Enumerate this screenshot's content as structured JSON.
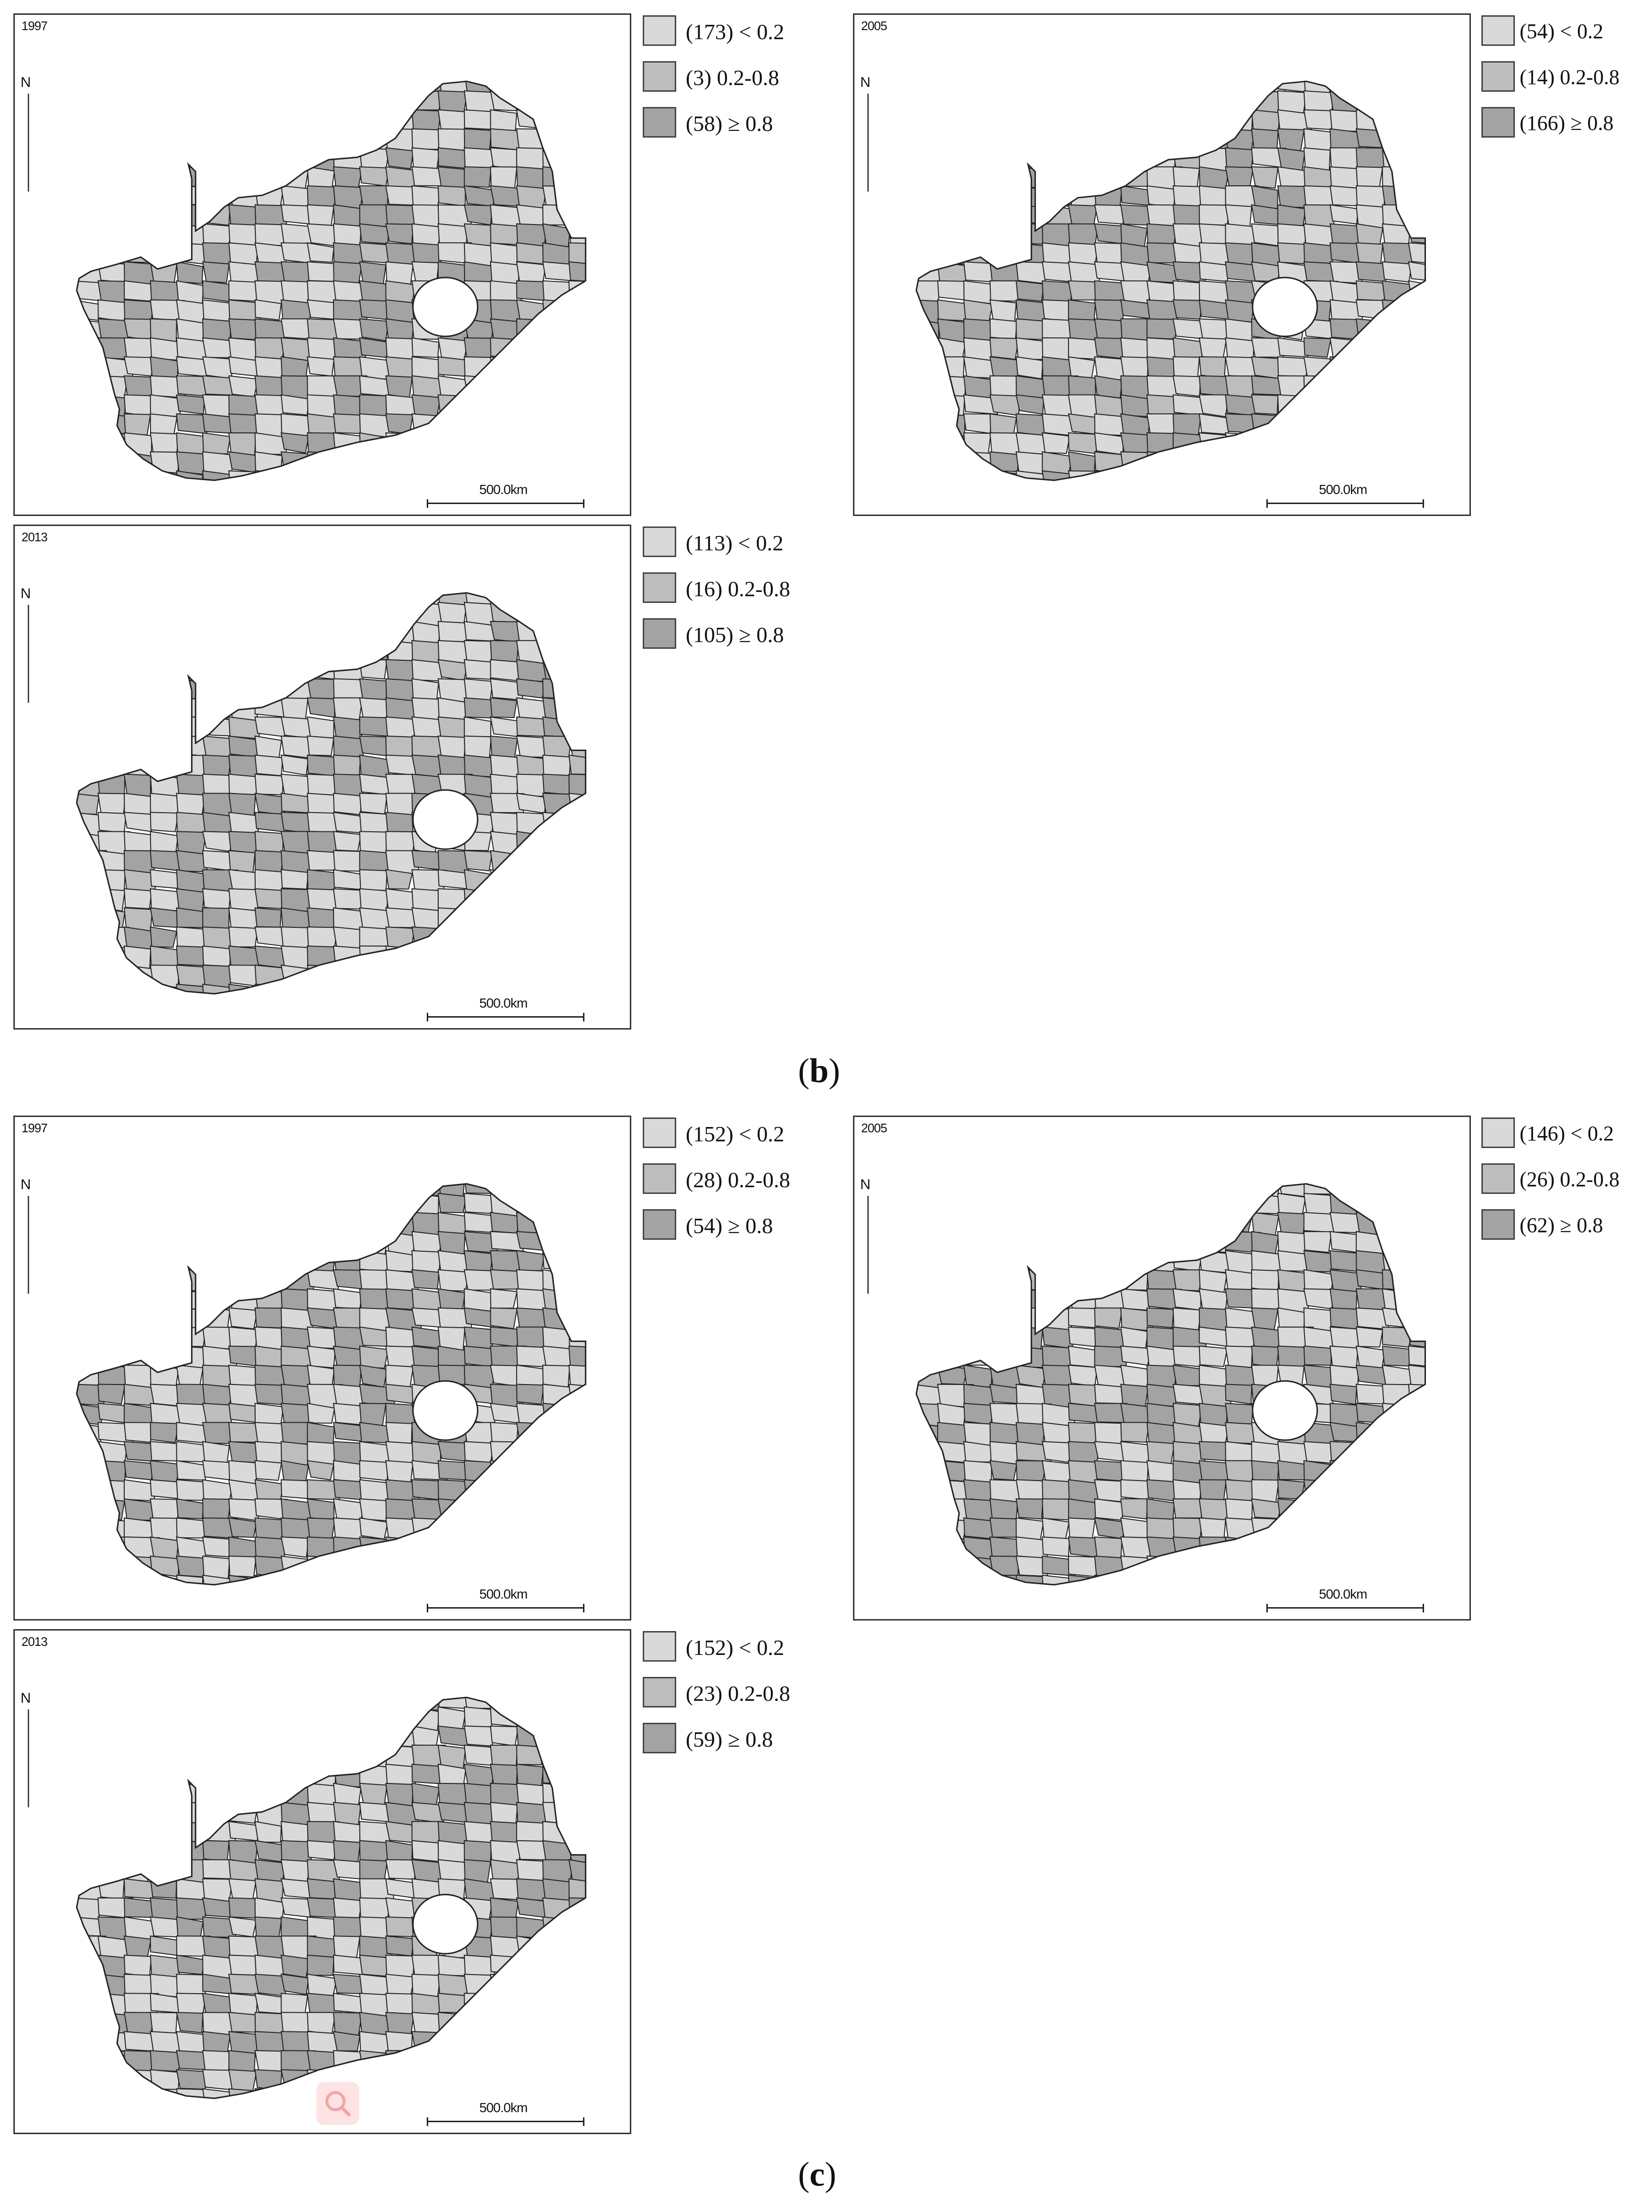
{
  "colors": {
    "light": "#d9d9d9",
    "medium": "#bdbdbd",
    "dark": "#a3a3a3",
    "border": "#222222"
  },
  "icons": {
    "north": "north-arrow-icon",
    "search": "search-icon"
  },
  "panels": [
    {
      "label": "b",
      "maps": [
        {
          "year": "1997",
          "scale": "500.0km",
          "north": "N",
          "legend": [
            {
              "text": "(173) < 0.2",
              "fill": "light"
            },
            {
              "text": "(3) 0.2-0.8",
              "fill": "medium"
            },
            {
              "text": "(58) ≥ 0.8",
              "fill": "dark"
            }
          ]
        },
        {
          "year": "2005",
          "scale": "500.0km",
          "north": "N",
          "legend": [
            {
              "text": "(54) < 0.2",
              "fill": "light"
            },
            {
              "text": "(14) 0.2-0.8",
              "fill": "medium"
            },
            {
              "text": "(166) ≥ 0.8",
              "fill": "dark"
            }
          ]
        },
        {
          "year": "2013",
          "scale": "500.0km",
          "north": "N",
          "legend": [
            {
              "text": "(113) < 0.2",
              "fill": "light"
            },
            {
              "text": "(16) 0.2-0.8",
              "fill": "medium"
            },
            {
              "text": "(105) ≥ 0.8",
              "fill": "dark"
            }
          ]
        }
      ]
    },
    {
      "label": "c",
      "maps": [
        {
          "year": "1997",
          "scale": "500.0km",
          "north": "N",
          "legend": [
            {
              "text": "(152) < 0.2",
              "fill": "light"
            },
            {
              "text": "(28) 0.2-0.8",
              "fill": "medium"
            },
            {
              "text": "(54) ≥ 0.8",
              "fill": "dark"
            }
          ]
        },
        {
          "year": "2005",
          "scale": "500.0km",
          "north": "N",
          "legend": [
            {
              "text": "(146) < 0.2",
              "fill": "light"
            },
            {
              "text": "(26) 0.2-0.8",
              "fill": "medium"
            },
            {
              "text": "(62) ≥ 0.8",
              "fill": "dark"
            }
          ]
        },
        {
          "year": "2013",
          "scale": "500.0km",
          "north": "N",
          "legend": [
            {
              "text": "(152) < 0.2",
              "fill": "light"
            },
            {
              "text": "(23) 0.2-0.8",
              "fill": "medium"
            },
            {
              "text": "(59) ≥ 0.8",
              "fill": "dark"
            }
          ]
        }
      ]
    }
  ]
}
